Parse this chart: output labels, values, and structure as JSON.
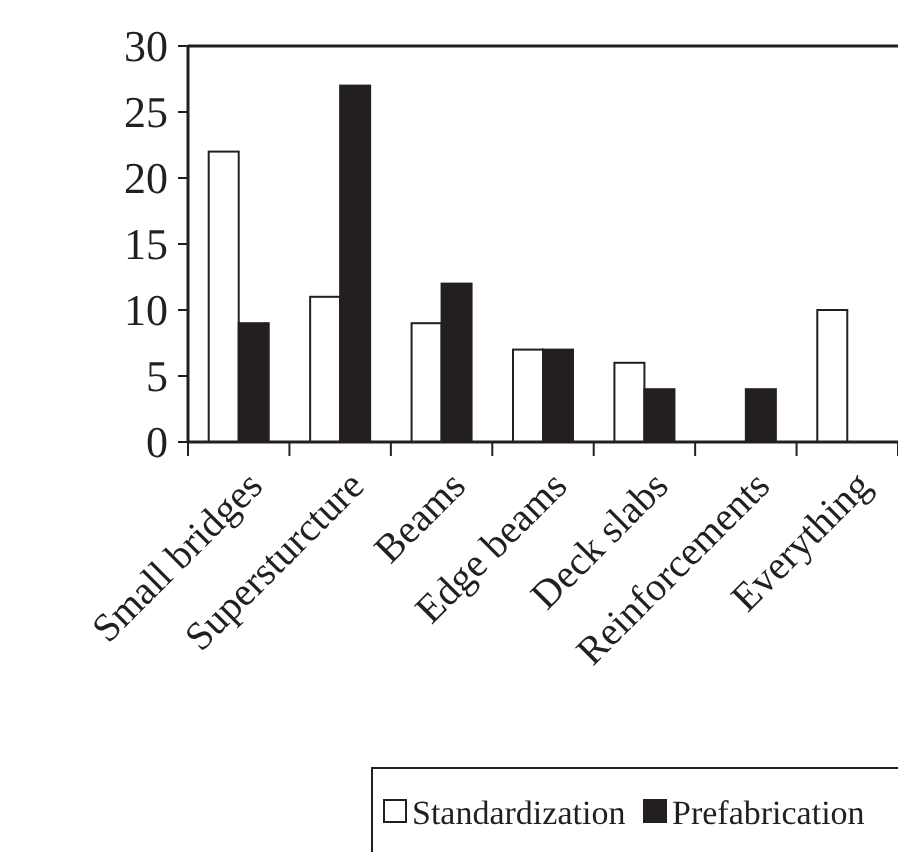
{
  "chart_data": {
    "type": "bar",
    "categories": [
      "Small bridges",
      "Supersturcture",
      "Beams",
      "Edge beams",
      "Deck slabs",
      "Reinforcements",
      "Everything"
    ],
    "series": [
      {
        "name": "Standardization",
        "color": "#ffffff",
        "values": [
          22,
          11,
          9,
          7,
          6,
          0,
          10
        ]
      },
      {
        "name": "Prefabrication",
        "color": "#231f20",
        "values": [
          9,
          27,
          12,
          7,
          4,
          4,
          0
        ]
      }
    ],
    "ylim": [
      0,
      30
    ],
    "yticks": [
      0,
      5,
      10,
      15,
      20,
      25,
      30
    ],
    "grid": false,
    "legend": "bottom"
  }
}
